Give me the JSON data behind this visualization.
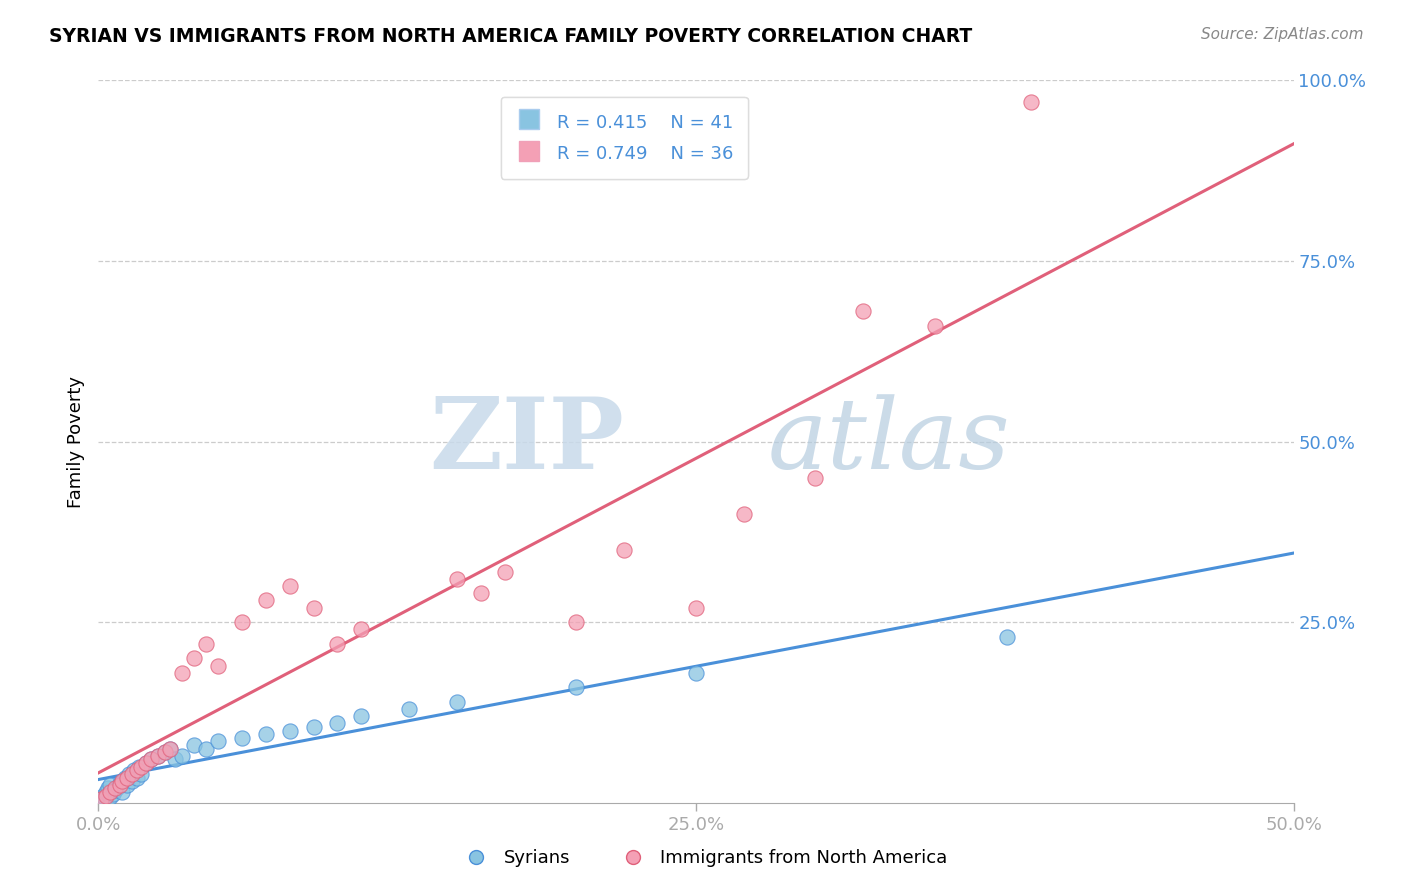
{
  "title": "SYRIAN VS IMMIGRANTS FROM NORTH AMERICA FAMILY POVERTY CORRELATION CHART",
  "source": "Source: ZipAtlas.com",
  "ylabel": "Family Poverty",
  "xlim": [
    0.0,
    0.5
  ],
  "ylim": [
    0.0,
    1.0
  ],
  "xtick_labels": [
    "0.0%",
    "25.0%",
    "50.0%"
  ],
  "xtick_positions": [
    0.0,
    0.25,
    0.5
  ],
  "ytick_labels": [
    "100.0%",
    "75.0%",
    "50.0%",
    "25.0%"
  ],
  "ytick_positions": [
    1.0,
    0.75,
    0.5,
    0.25
  ],
  "legend_R1": "R = 0.415",
  "legend_N1": "N = 41",
  "legend_R2": "R = 0.749",
  "legend_N2": "N = 36",
  "label_syrians": "Syrians",
  "label_immigrants": "Immigrants from North America",
  "color_blue": "#89c4e1",
  "color_blue_line": "#4a90d9",
  "color_pink": "#f4a0b5",
  "color_pink_line": "#e0607a",
  "color_axis_text": "#4a90d9",
  "watermark_zip": "ZIP",
  "watermark_atlas": "atlas",
  "watermark_color_zip": "#c5d8ed",
  "watermark_color_atlas": "#b0c8e0",
  "background_color": "#ffffff",
  "grid_color": "#cccccc",
  "syrians_x": [
    0.001,
    0.002,
    0.003,
    0.004,
    0.005,
    0.005,
    0.006,
    0.007,
    0.008,
    0.009,
    0.01,
    0.01,
    0.011,
    0.012,
    0.013,
    0.014,
    0.015,
    0.016,
    0.017,
    0.018,
    0.02,
    0.022,
    0.025,
    0.028,
    0.03,
    0.032,
    0.035,
    0.04,
    0.045,
    0.05,
    0.06,
    0.07,
    0.08,
    0.09,
    0.1,
    0.11,
    0.13,
    0.15,
    0.2,
    0.25,
    0.38
  ],
  "syrians_y": [
    0.005,
    0.01,
    0.015,
    0.02,
    0.025,
    0.008,
    0.012,
    0.018,
    0.022,
    0.028,
    0.03,
    0.015,
    0.035,
    0.025,
    0.04,
    0.03,
    0.045,
    0.035,
    0.05,
    0.04,
    0.055,
    0.06,
    0.065,
    0.07,
    0.075,
    0.06,
    0.065,
    0.08,
    0.075,
    0.085,
    0.09,
    0.095,
    0.1,
    0.105,
    0.11,
    0.12,
    0.13,
    0.14,
    0.16,
    0.18,
    0.23
  ],
  "immigrants_x": [
    0.001,
    0.003,
    0.005,
    0.007,
    0.009,
    0.01,
    0.012,
    0.014,
    0.016,
    0.018,
    0.02,
    0.022,
    0.025,
    0.028,
    0.03,
    0.035,
    0.04,
    0.045,
    0.05,
    0.06,
    0.07,
    0.08,
    0.09,
    0.1,
    0.11,
    0.15,
    0.16,
    0.17,
    0.2,
    0.22,
    0.25,
    0.27,
    0.3,
    0.32,
    0.35,
    0.39
  ],
  "immigrants_y": [
    0.005,
    0.01,
    0.015,
    0.02,
    0.025,
    0.03,
    0.035,
    0.04,
    0.045,
    0.05,
    0.055,
    0.06,
    0.065,
    0.07,
    0.075,
    0.18,
    0.2,
    0.22,
    0.19,
    0.25,
    0.28,
    0.3,
    0.27,
    0.22,
    0.24,
    0.31,
    0.29,
    0.32,
    0.25,
    0.35,
    0.27,
    0.4,
    0.45,
    0.68,
    0.66,
    0.97
  ]
}
